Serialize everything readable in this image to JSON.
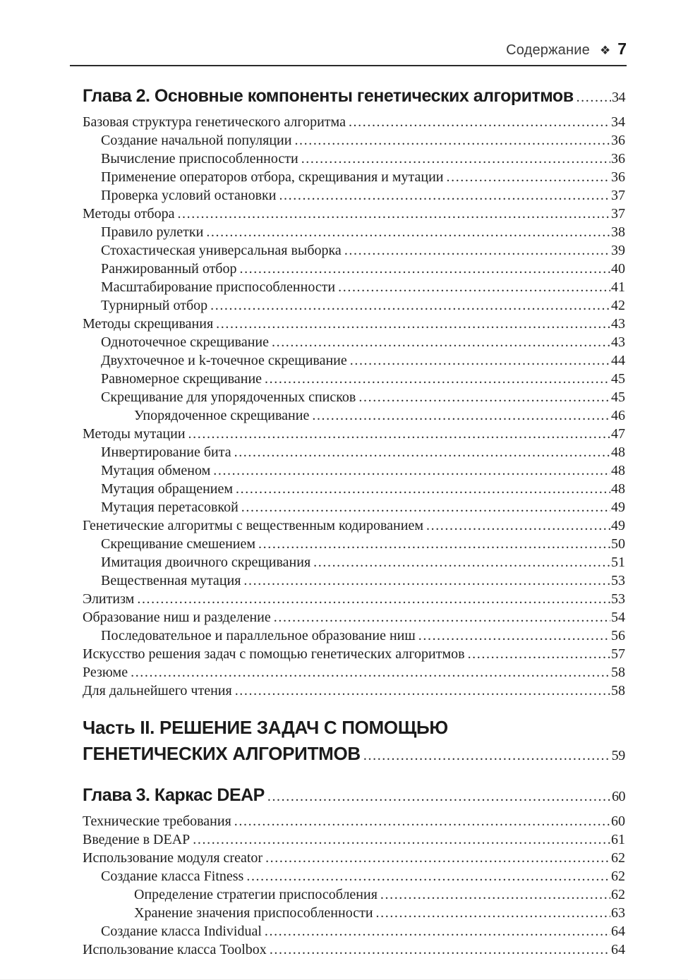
{
  "header": {
    "running_title": "Содержание",
    "separator_icon": "four-diamonds",
    "separator_glyph": "❖",
    "page_number": "7"
  },
  "colors": {
    "text": "#1e1e1e",
    "heading": "#1b1b1b",
    "rule": "#2b2b2b"
  },
  "toc": {
    "rows": [
      {
        "style": "chapter",
        "level": 0,
        "title": "Глава 2. Основные компоненты генетических алгоритмов",
        "page": "34"
      },
      {
        "style": "entry",
        "level": 0,
        "title": "Базовая структура генетического алгоритма",
        "page": "34"
      },
      {
        "style": "entry",
        "level": 1,
        "title": "Создание начальной популяции",
        "page": "36"
      },
      {
        "style": "entry",
        "level": 1,
        "title": "Вычисление приспособленности",
        "page": "36"
      },
      {
        "style": "entry",
        "level": 1,
        "title": "Применение операторов отбора, скрещивания и мутации",
        "page": "36"
      },
      {
        "style": "entry",
        "level": 1,
        "title": "Проверка условий остановки",
        "page": "37"
      },
      {
        "style": "entry",
        "level": 0,
        "title": "Методы отбора",
        "page": "37"
      },
      {
        "style": "entry",
        "level": 1,
        "title": "Правило рулетки",
        "page": "38"
      },
      {
        "style": "entry",
        "level": 1,
        "title": "Стохастическая универсальная выборка",
        "page": "39"
      },
      {
        "style": "entry",
        "level": 1,
        "title": "Ранжированный отбор",
        "page": "40"
      },
      {
        "style": "entry",
        "level": 1,
        "title": "Масштабирование приспособленности",
        "page": "41"
      },
      {
        "style": "entry",
        "level": 1,
        "title": "Турнирный отбор",
        "page": "42"
      },
      {
        "style": "entry",
        "level": 0,
        "title": "Методы скрещивания",
        "page": "43"
      },
      {
        "style": "entry",
        "level": 1,
        "title": "Одноточечное скрещивание",
        "page": "43"
      },
      {
        "style": "entry",
        "level": 1,
        "title": "Двухточечное и k-точечное скрещивание",
        "page": "44"
      },
      {
        "style": "entry",
        "level": 1,
        "title": "Равномерное скрещивание",
        "page": "45"
      },
      {
        "style": "entry",
        "level": 1,
        "title": "Скрещивание для упорядоченных списков",
        "page": "45"
      },
      {
        "style": "entry",
        "level": 2,
        "title": "Упорядоченное скрещивание",
        "page": "46"
      },
      {
        "style": "entry",
        "level": 0,
        "title": "Методы мутации",
        "page": "47"
      },
      {
        "style": "entry",
        "level": 1,
        "title": "Инвертирование бита",
        "page": "48"
      },
      {
        "style": "entry",
        "level": 1,
        "title": "Мутация обменом",
        "page": "48"
      },
      {
        "style": "entry",
        "level": 1,
        "title": "Мутация обращением",
        "page": "48"
      },
      {
        "style": "entry",
        "level": 1,
        "title": "Мутация перетасовкой",
        "page": "49"
      },
      {
        "style": "entry",
        "level": 0,
        "title": "Генетические алгоритмы с вещественным кодированием",
        "page": "49"
      },
      {
        "style": "entry",
        "level": 1,
        "title": "Скрещивание смешением",
        "page": "50"
      },
      {
        "style": "entry",
        "level": 1,
        "title": "Имитация двоичного скрещивания",
        "page": "51"
      },
      {
        "style": "entry",
        "level": 1,
        "title": "Вещественная мутация",
        "page": "53"
      },
      {
        "style": "entry",
        "level": 0,
        "title": "Элитизм",
        "page": "53"
      },
      {
        "style": "entry",
        "level": 0,
        "title": "Образование ниш и разделение",
        "page": "54"
      },
      {
        "style": "entry",
        "level": 1,
        "title": "Последовательное и параллельное образование ниш",
        "page": "56"
      },
      {
        "style": "entry",
        "level": 0,
        "title": "Искусство решения задач с помощью генетических алгоритмов",
        "page": "57"
      },
      {
        "style": "entry",
        "level": 0,
        "title": "Резюме",
        "page": "58"
      },
      {
        "style": "entry",
        "level": 0,
        "title": "Для дальнейшего чтения",
        "page": "58"
      },
      {
        "style": "part",
        "level": 0,
        "title": "Часть  II. РЕШЕНИЕ ЗАДАЧ С ПОМОЩЬЮ",
        "page": ""
      },
      {
        "style": "part",
        "level": 0,
        "title": "ГЕНЕТИЧЕСКИХ АЛГОРИТМОВ",
        "page": "59"
      },
      {
        "style": "chapter",
        "level": 0,
        "title": "Глава 3. Каркас DEAP",
        "page": "60"
      },
      {
        "style": "entry",
        "level": 0,
        "title": "Технические требования",
        "page": "60"
      },
      {
        "style": "entry",
        "level": 0,
        "title": "Введение в DEAP",
        "page": "61"
      },
      {
        "style": "entry",
        "level": 0,
        "title": "Использование модуля creator",
        "page": "62"
      },
      {
        "style": "entry",
        "level": 1,
        "title": "Создание класса Fitness",
        "page": "62"
      },
      {
        "style": "entry",
        "level": 2,
        "title": "Определение стратегии приспособления",
        "page": "62"
      },
      {
        "style": "entry",
        "level": 2,
        "title": "Хранение значения приспособленности",
        "page": "63"
      },
      {
        "style": "entry",
        "level": 1,
        "title": "Создание класса Individual",
        "page": "64"
      },
      {
        "style": "entry",
        "level": 0,
        "title": "Использование класса Toolbox",
        "page": "64"
      }
    ]
  }
}
